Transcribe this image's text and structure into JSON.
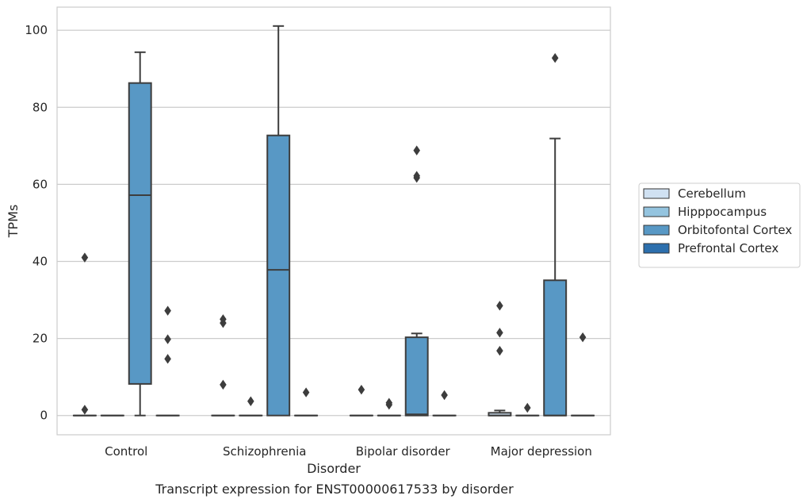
{
  "chart_data": {
    "type": "boxplot",
    "xlabel": "Disorder",
    "ylabel": "TPMs",
    "caption": "Transcript expression for ENST00000617533 by disorder",
    "ylim": [
      -5,
      106
    ],
    "yticks": [
      0,
      20,
      40,
      60,
      80,
      100
    ],
    "grid": true,
    "legend_position": "right",
    "categories": [
      "Control",
      "Schizophrenia",
      "Bipolar disorder",
      "Major depression"
    ],
    "series": [
      {
        "name": "Cerebellum",
        "color": "#d0e1f2",
        "boxes": [
          {
            "min": 0,
            "q1": 0,
            "median": 0,
            "q3": 0,
            "max": 0,
            "outliers": [
              1.5,
              41
            ]
          },
          {
            "min": 0,
            "q1": 0,
            "median": 0,
            "q3": 0,
            "max": 0,
            "outliers": [
              8,
              24,
              25
            ]
          },
          {
            "min": 0,
            "q1": 0,
            "median": 0,
            "q3": 0,
            "max": 0,
            "outliers": [
              6.7
            ]
          },
          {
            "min": 0,
            "q1": 0,
            "median": 0,
            "q3": 0.7,
            "max": 1.3,
            "outliers": [
              16.8,
              21.5,
              28.5
            ]
          }
        ]
      },
      {
        "name": "Hipppocampus",
        "color": "#94c4df",
        "boxes": [
          {
            "min": 0,
            "q1": 0,
            "median": 0,
            "q3": 0,
            "max": 0,
            "outliers": []
          },
          {
            "min": 0,
            "q1": 0,
            "median": 0,
            "q3": 0,
            "max": 0,
            "outliers": [
              3.7
            ]
          },
          {
            "min": 0,
            "q1": 0,
            "median": 0,
            "q3": 0,
            "max": 0,
            "outliers": [
              2.8,
              3.3
            ]
          },
          {
            "min": 0,
            "q1": 0,
            "median": 0,
            "q3": 0,
            "max": 0,
            "outliers": [
              2
            ]
          }
        ]
      },
      {
        "name": "Orbitofontal Cortex",
        "color": "#5898c5",
        "boxes": [
          {
            "min": 0,
            "q1": 8.2,
            "median": 57.2,
            "q3": 86.3,
            "max": 94.3,
            "outliers": []
          },
          {
            "min": 0,
            "q1": 0,
            "median": 37.8,
            "q3": 72.7,
            "max": 101.1,
            "outliers": []
          },
          {
            "min": 0,
            "q1": 0,
            "median": 0.3,
            "q3": 20.3,
            "max": 21.3,
            "outliers": [
              61.7,
              62.2,
              68.8
            ]
          },
          {
            "min": 0,
            "q1": 0,
            "median": 0,
            "q3": 35.1,
            "max": 71.9,
            "outliers": [
              92.8
            ]
          }
        ]
      },
      {
        "name": "Prefrontal Cortex",
        "color": "#2c6fad",
        "boxes": [
          {
            "min": 0,
            "q1": 0,
            "median": 0,
            "q3": 0,
            "max": 0,
            "outliers": [
              14.7,
              19.8,
              27.2
            ]
          },
          {
            "min": 0,
            "q1": 0,
            "median": 0,
            "q3": 0,
            "max": 0,
            "outliers": [
              6
            ]
          },
          {
            "min": 0,
            "q1": 0,
            "median": 0,
            "q3": 0,
            "max": 0,
            "outliers": [
              5.3
            ]
          },
          {
            "min": 0,
            "q1": 0,
            "median": 0,
            "q3": 0,
            "max": 0,
            "outliers": [
              20.3
            ]
          }
        ]
      }
    ]
  }
}
